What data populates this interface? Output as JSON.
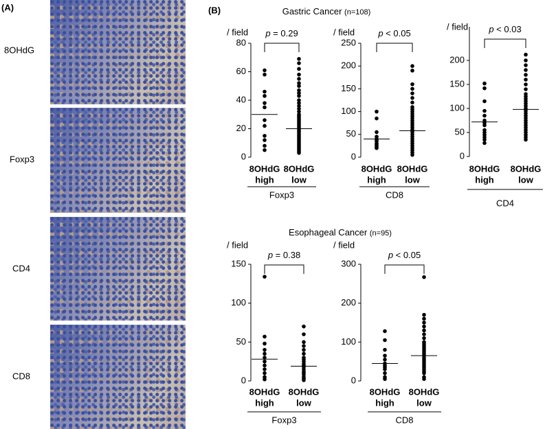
{
  "panel_a": {
    "label": "(A)",
    "rows": [
      "8OHdG",
      "Foxp3",
      "CD4",
      "CD8"
    ]
  },
  "panel_b": {
    "label": "(B)",
    "groups": [
      {
        "title": "Gastric Cancer",
        "n": "(n=108)"
      },
      {
        "title": "Esophageal Cancer",
        "n": "(n=95)"
      }
    ]
  },
  "chart_data": [
    {
      "type": "strip",
      "y_label": "/ field",
      "annotation_prefix": "p",
      "annotation": "= 0.29",
      "x_label": "Foxp3",
      "categories": [
        [
          "8OHdG",
          "high"
        ],
        [
          "8OHdG",
          "low"
        ]
      ],
      "ylim": [
        0,
        80
      ],
      "yticks": [
        0,
        20,
        40,
        60,
        80
      ],
      "values": [
        [
          61,
          58,
          46,
          43,
          38,
          35,
          26,
          22,
          15,
          12,
          8,
          5
        ],
        [
          69,
          66,
          62,
          58,
          55,
          52,
          50,
          47,
          45,
          43,
          40,
          38,
          36,
          34,
          32,
          30,
          29,
          28,
          27,
          26,
          25,
          24,
          23,
          22,
          21,
          20,
          19,
          18,
          17,
          16,
          15,
          14,
          13,
          12,
          11,
          10,
          9,
          8,
          7,
          6,
          5,
          4,
          3
        ]
      ],
      "medians": [
        30,
        20
      ]
    },
    {
      "type": "strip",
      "y_label": "/ field",
      "annotation_prefix": "p",
      "annotation": "< 0.05",
      "x_label": "CD8",
      "categories": [
        [
          "8OHdG",
          "high"
        ],
        [
          "8OHdG",
          "low"
        ]
      ],
      "ylim": [
        0,
        250
      ],
      "yticks": [
        0,
        50,
        100,
        150,
        200,
        250
      ],
      "values": [
        [
          100,
          85,
          55,
          45,
          40,
          38,
          35,
          30,
          28,
          25,
          22,
          20
        ],
        [
          200,
          190,
          160,
          150,
          140,
          130,
          120,
          110,
          105,
          100,
          95,
          90,
          85,
          80,
          75,
          70,
          65,
          60,
          58,
          55,
          50,
          45,
          40,
          35,
          30,
          25,
          20,
          15,
          10,
          5
        ]
      ],
      "medians": [
        40,
        58
      ]
    },
    {
      "type": "strip",
      "y_label": "/ field",
      "annotation_prefix": "p",
      "annotation": "< 0.03",
      "x_label": "CD4",
      "categories": [
        [
          "8OHdG",
          "high"
        ],
        [
          "8OHdG",
          "low"
        ]
      ],
      "ylim": [
        0,
        270
      ],
      "yticks": [
        0,
        50,
        100,
        150,
        200
      ],
      "values": [
        [
          152,
          142,
          115,
          95,
          85,
          75,
          70,
          65,
          55,
          50,
          45,
          40,
          35,
          28
        ],
        [
          212,
          200,
          190,
          180,
          170,
          160,
          150,
          140,
          130,
          125,
          120,
          115,
          110,
          105,
          100,
          95,
          90,
          85,
          80,
          75,
          70,
          65,
          60,
          55,
          50,
          45,
          40,
          35
        ]
      ],
      "medians": [
        72,
        98
      ]
    },
    {
      "type": "strip",
      "y_label": "/ field",
      "annotation_prefix": "p",
      "annotation": "= 0.38",
      "x_label": "Foxp3",
      "categories": [
        [
          "8OHdG",
          "high"
        ],
        [
          "8OHdG",
          "low"
        ]
      ],
      "ylim": [
        0,
        150
      ],
      "yticks": [
        0,
        50,
        100,
        150
      ],
      "values": [
        [
          134,
          57,
          48,
          40,
          35,
          30,
          25,
          20,
          15,
          10,
          5,
          2
        ],
        [
          70,
          60,
          50,
          45,
          40,
          35,
          30,
          28,
          25,
          22,
          20,
          18,
          15,
          12,
          10,
          8,
          5,
          3,
          1
        ]
      ],
      "medians": [
        28,
        19
      ]
    },
    {
      "type": "strip",
      "y_label": "/ field",
      "annotation_prefix": "p",
      "annotation": "< 0.05",
      "x_label": "CD8",
      "categories": [
        [
          "8OHdG",
          "high"
        ],
        [
          "8OHdG",
          "low"
        ]
      ],
      "ylim": [
        0,
        300
      ],
      "yticks": [
        0,
        100,
        200,
        300
      ],
      "values": [
        [
          128,
          105,
          80,
          65,
          55,
          45,
          40,
          35,
          30,
          20,
          10,
          5
        ],
        [
          267,
          170,
          160,
          150,
          140,
          130,
          120,
          110,
          100,
          95,
          90,
          85,
          80,
          75,
          70,
          65,
          60,
          55,
          50,
          45,
          40,
          35,
          30,
          25,
          20,
          10,
          5
        ]
      ],
      "medians": [
        45,
        65
      ]
    }
  ]
}
